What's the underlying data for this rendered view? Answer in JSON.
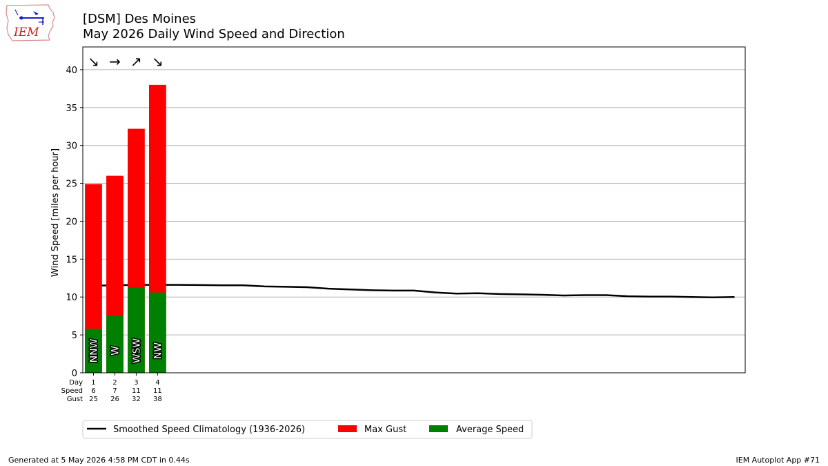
{
  "header": {
    "title_line1": "[DSM] Des Moines",
    "title_line2": "May 2026 Daily Wind Speed and Direction"
  },
  "logo": {
    "text": "IEM"
  },
  "footer": {
    "left": "Generated at 5 May 2026 4:58 PM CDT in 0.44s",
    "right": "IEM Autoplot App #71"
  },
  "colors": {
    "gust": "#ff0000",
    "average": "#008000",
    "climatology": "#000000",
    "grid": "#b0b0b0"
  },
  "chart_data": {
    "type": "bar",
    "title": "May 2026 Daily Wind Speed and Direction",
    "ylabel": "Wind Speed [miles per hour]",
    "ylim": [
      0,
      43
    ],
    "xlim": [
      0.5,
      31.5
    ],
    "yticks": [
      0,
      5,
      10,
      15,
      20,
      25,
      30,
      35,
      40
    ],
    "grid": true,
    "legend_position": "bottom-left",
    "row_labels": [
      "Day",
      "Speed",
      "Gust"
    ],
    "days": [
      1,
      2,
      3,
      4
    ],
    "series": [
      {
        "name": "Max Gust",
        "values": [
          24.9,
          26.0,
          32.2,
          38.0
        ]
      },
      {
        "name": "Average Speed",
        "values": [
          5.8,
          7.5,
          11.3,
          10.6
        ]
      }
    ],
    "speed_labels": [
      "6",
      "7",
      "11",
      "11"
    ],
    "gust_labels": [
      "25",
      "26",
      "32",
      "38"
    ],
    "direction_labels": [
      "NNW",
      "W",
      "WSW",
      "NW"
    ],
    "direction_arrows": [
      "↘",
      "→",
      "↗",
      "↘"
    ],
    "climatology": {
      "name": "Smoothed Speed Climatology (1936-2026)",
      "x": [
        1,
        2,
        3,
        4,
        5,
        6,
        7,
        8,
        9,
        10,
        11,
        12,
        13,
        14,
        15,
        16,
        17,
        18,
        19,
        20,
        21,
        22,
        23,
        24,
        25,
        26,
        27,
        28,
        29,
        30,
        31
      ],
      "y": [
        11.5,
        11.55,
        11.6,
        11.6,
        11.6,
        11.58,
        11.55,
        11.55,
        11.4,
        11.35,
        11.3,
        11.1,
        11.0,
        10.9,
        10.85,
        10.85,
        10.6,
        10.45,
        10.5,
        10.4,
        10.35,
        10.3,
        10.2,
        10.25,
        10.25,
        10.1,
        10.05,
        10.05,
        10.0,
        9.95,
        10.0
      ]
    }
  }
}
